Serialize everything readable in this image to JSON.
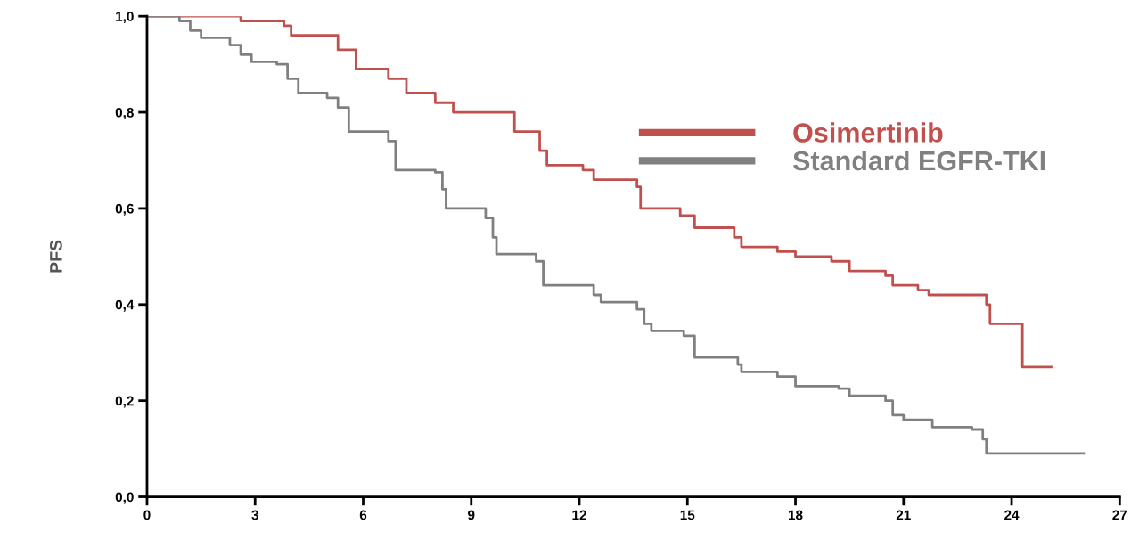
{
  "chart_data": {
    "type": "step",
    "ylabel": "PFS",
    "legend": "top right",
    "grid": false,
    "marker": "none",
    "line_style": "solid",
    "xlim": [
      0,
      27
    ],
    "ylim": [
      0,
      1.0
    ],
    "xticks": [
      0,
      3,
      6,
      9,
      12,
      15,
      18,
      21,
      24,
      27
    ],
    "yticks": [
      {
        "value": 0,
        "label": "0,0"
      },
      {
        "value": 0.2,
        "label": "0,2"
      },
      {
        "value": 0.4,
        "label": "0,4"
      },
      {
        "value": 0.6,
        "label": "0,6"
      },
      {
        "value": 0.8,
        "label": "0,8"
      },
      {
        "value": 1.0,
        "label": "1,0"
      }
    ],
    "series": [
      {
        "name": "Osimertinib",
        "color": "#c0504d",
        "x": [
          0,
          2.6,
          3.8,
          4.0,
          5.3,
          5.8,
          6.7,
          7.2,
          8.0,
          8.5,
          10.2,
          10.9,
          11.1,
          12.1,
          12.4,
          13.6,
          13.7,
          14.8,
          15.2,
          16.3,
          16.5,
          17.5,
          18.0,
          19.0,
          19.5,
          20.5,
          20.7,
          21.4,
          21.7,
          23.3,
          23.4,
          24.3,
          25.1
        ],
        "values": [
          1.0,
          0.99,
          0.98,
          0.96,
          0.93,
          0.89,
          0.87,
          0.84,
          0.82,
          0.8,
          0.76,
          0.72,
          0.69,
          0.68,
          0.66,
          0.645,
          0.6,
          0.585,
          0.56,
          0.54,
          0.52,
          0.51,
          0.5,
          0.49,
          0.47,
          0.46,
          0.44,
          0.43,
          0.42,
          0.4,
          0.36,
          0.27,
          0.27
        ]
      },
      {
        "name": "Standard EGFR-TKI",
        "color": "#808080",
        "x": [
          0,
          0.9,
          1.2,
          1.5,
          2.3,
          2.6,
          2.9,
          3.6,
          3.9,
          4.2,
          5.0,
          5.3,
          5.6,
          6.7,
          6.9,
          8.0,
          8.2,
          8.3,
          9.4,
          9.6,
          9.7,
          10.8,
          11.0,
          12.4,
          12.6,
          13.6,
          13.8,
          14.0,
          14.9,
          15.2,
          16.4,
          16.5,
          17.5,
          18.0,
          19.2,
          19.5,
          20.5,
          20.7,
          21.0,
          21.8,
          22.9,
          23.2,
          23.3,
          26.0
        ],
        "values": [
          1.0,
          0.99,
          0.97,
          0.955,
          0.94,
          0.92,
          0.905,
          0.9,
          0.87,
          0.84,
          0.83,
          0.81,
          0.76,
          0.74,
          0.68,
          0.675,
          0.64,
          0.6,
          0.58,
          0.54,
          0.505,
          0.49,
          0.44,
          0.42,
          0.405,
          0.39,
          0.36,
          0.345,
          0.335,
          0.29,
          0.275,
          0.26,
          0.25,
          0.23,
          0.225,
          0.21,
          0.2,
          0.17,
          0.16,
          0.145,
          0.14,
          0.12,
          0.09,
          0.09
        ]
      }
    ]
  }
}
